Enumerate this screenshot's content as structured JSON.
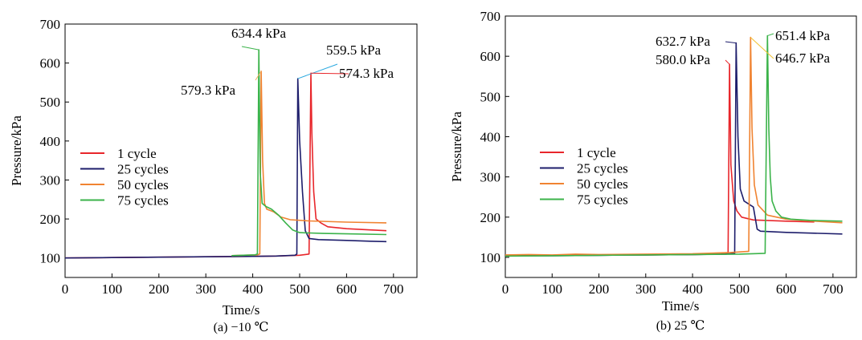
{
  "chart_data": [
    {
      "type": "line",
      "caption": "(a) −10 ℃",
      "xlabel": "Time/s",
      "ylabel": "Pressure/kPa",
      "xlim": [
        0,
        750
      ],
      "ylim": [
        50,
        700
      ],
      "xticks": [
        0,
        100,
        200,
        300,
        400,
        500,
        600,
        700
      ],
      "yticks": [
        100,
        200,
        300,
        400,
        500,
        600,
        700
      ],
      "legend_position": "center-left",
      "series": [
        {
          "name": "1 cycle",
          "color": "#e8262b",
          "x": [
            0,
            100,
            200,
            300,
            400,
            450,
            500,
            520,
            524,
            526,
            530,
            535,
            545,
            560,
            600,
            650,
            685
          ],
          "y": [
            100,
            101,
            102,
            103,
            104,
            105,
            107,
            110,
            574,
            420,
            270,
            200,
            190,
            180,
            175,
            172,
            170
          ]
        },
        {
          "name": "25 cycles",
          "color": "#1d1d6b",
          "x": [
            0,
            100,
            200,
            300,
            400,
            450,
            490,
            494,
            496,
            500,
            506,
            512,
            520,
            540,
            600,
            650,
            685
          ],
          "y": [
            100,
            101,
            102,
            103,
            104,
            105,
            107,
            110,
            560,
            400,
            270,
            170,
            150,
            147,
            145,
            143,
            142
          ]
        },
        {
          "name": "50 cycles",
          "color": "#f08331",
          "x": [
            355,
            380,
            410,
            415,
            418,
            421,
            425,
            430,
            445,
            460,
            480,
            520,
            600,
            685
          ],
          "y": [
            106,
            107,
            108,
            110,
            579,
            350,
            240,
            225,
            218,
            205,
            198,
            195,
            192,
            190
          ]
        },
        {
          "name": "75 cycles",
          "color": "#3bb34a",
          "x": [
            355,
            380,
            405,
            410,
            413,
            416,
            420,
            428,
            440,
            455,
            470,
            485,
            500,
            550,
            600,
            685
          ],
          "y": [
            106,
            107,
            108,
            110,
            634,
            320,
            240,
            232,
            225,
            210,
            190,
            172,
            165,
            163,
            162,
            160
          ]
        }
      ],
      "annotations": [
        {
          "text": "634.4 kPa",
          "x": 413,
          "y": 634
        },
        {
          "text": "559.5 kPa",
          "x": 496,
          "y": 560
        },
        {
          "text": "574.3 kPa",
          "x": 524,
          "y": 574
        },
        {
          "text": "579.3 kPa",
          "x": 418,
          "y": 579
        }
      ]
    },
    {
      "type": "line",
      "caption": "(b) 25 ℃",
      "xlabel": "Time/s",
      "ylabel": "Pressure/kPa",
      "xlim": [
        0,
        750
      ],
      "ylim": [
        50,
        700
      ],
      "xticks": [
        0,
        100,
        200,
        300,
        400,
        500,
        600,
        700
      ],
      "yticks": [
        100,
        200,
        300,
        400,
        500,
        600,
        700
      ],
      "legend_position": "center-left",
      "series": [
        {
          "name": "1 cycle",
          "color": "#e8262b",
          "x": [
            0,
            100,
            200,
            300,
            400,
            460,
            476,
            479,
            482,
            488,
            495,
            505,
            530,
            600,
            660
          ],
          "y": [
            105,
            105,
            106,
            106,
            107,
            108,
            110,
            580,
            330,
            240,
            215,
            200,
            193,
            190,
            188
          ]
        },
        {
          "name": "25 cycles",
          "color": "#1d1d6b",
          "x": [
            0,
            100,
            200,
            300,
            400,
            470,
            490,
            493,
            497,
            502,
            510,
            530,
            538,
            545,
            600,
            660,
            720
          ],
          "y": [
            104,
            104,
            105,
            106,
            107,
            108,
            110,
            633,
            400,
            270,
            240,
            225,
            170,
            165,
            162,
            160,
            158
          ]
        },
        {
          "name": "50 cycles",
          "color": "#f08331",
          "x": [
            0,
            50,
            100,
            150,
            200,
            300,
            400,
            480,
            520,
            524,
            527,
            532,
            540,
            560,
            600,
            660,
            720
          ],
          "y": [
            106,
            107,
            106,
            108,
            107,
            108,
            109,
            112,
            115,
            647,
            420,
            280,
            230,
            205,
            195,
            190,
            186
          ]
        },
        {
          "name": "75 cycles",
          "color": "#3bb34a",
          "x": [
            0,
            100,
            200,
            300,
            400,
            500,
            555,
            560,
            563,
            566,
            570,
            578,
            590,
            610,
            650,
            720
          ],
          "y": [
            103,
            104,
            105,
            106,
            107,
            108,
            110,
            651,
            420,
            300,
            240,
            215,
            200,
            195,
            192,
            190
          ]
        }
      ],
      "annotations": [
        {
          "text": "632.7 kPa",
          "x": 493,
          "y": 633
        },
        {
          "text": "580.0 kPa",
          "x": 479,
          "y": 580
        },
        {
          "text": "651.4 kPa",
          "x": 560,
          "y": 651
        },
        {
          "text": "646.7 kPa",
          "x": 524,
          "y": 647
        }
      ]
    }
  ]
}
